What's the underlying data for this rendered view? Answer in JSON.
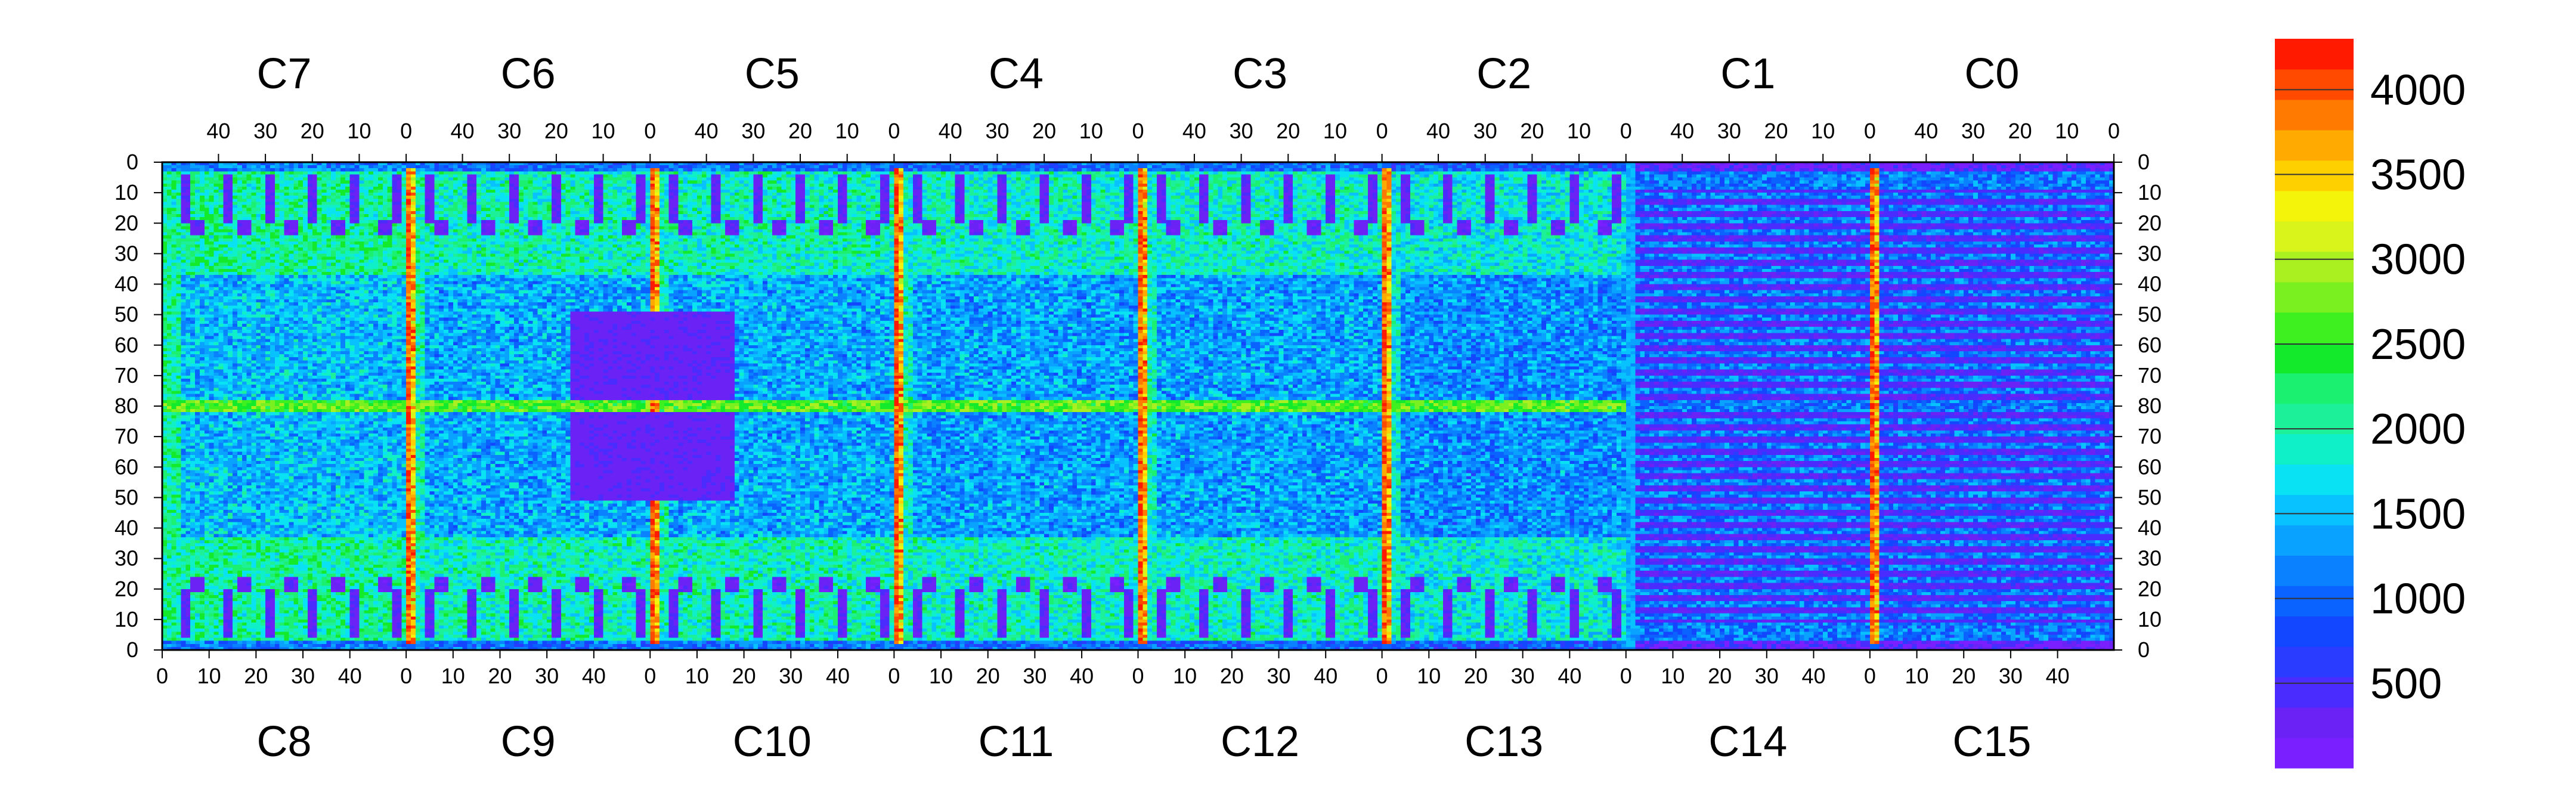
{
  "chart_data": {
    "type": "heatmap",
    "title": "",
    "xlabel": "",
    "ylabel": "",
    "colormap": "rainbow (violet -> blue -> cyan -> green -> yellow -> orange -> red)",
    "grid": false,
    "legend_position": "right",
    "chips_top": [
      "C7",
      "C6",
      "C5",
      "C4",
      "C3",
      "C2",
      "C1",
      "C0"
    ],
    "chips_bottom": [
      "C8",
      "C9",
      "C10",
      "C11",
      "C12",
      "C13",
      "C14",
      "C15"
    ],
    "top_x_ticks": [
      "40",
      "30",
      "20",
      "10",
      "0"
    ],
    "bottom_x_ticks": [
      "0",
      "10",
      "20",
      "30",
      "40"
    ],
    "y_ticks": [
      "0",
      "10",
      "20",
      "30",
      "40",
      "50",
      "60",
      "70",
      "80",
      "70",
      "60",
      "50",
      "40",
      "30",
      "20",
      "10",
      "0"
    ],
    "chip_columns": 52,
    "rows_per_half": 80,
    "colorbar": {
      "min": 0,
      "max": 4300,
      "ticks": [
        500,
        1000,
        1500,
        2000,
        2500,
        3000,
        3500,
        4000
      ],
      "tick_labels": [
        "500",
        "1000",
        "1500",
        "2000",
        "2500",
        "3000",
        "3500",
        "4000"
      ],
      "colors": [
        "#7a1fff",
        "#6a22f5",
        "#4a2cff",
        "#2a3cff",
        "#1246ff",
        "#0a62ff",
        "#0a82ff",
        "#0aa2ff",
        "#08c2ff",
        "#08e2f2",
        "#10f0c8",
        "#1cf098",
        "#1cf070",
        "#14ea2c",
        "#3ef020",
        "#7af020",
        "#aaf020",
        "#d8f41a",
        "#f4f40a",
        "#ffd000",
        "#ffaa00",
        "#ff7a00",
        "#ff4a00",
        "#ff1a00"
      ]
    },
    "chips": {
      "C7": {
        "mean": 2050
      },
      "C6": {
        "mean": 1950
      },
      "C5": {
        "mean": 1950
      },
      "C4": {
        "mean": 1900
      },
      "C3": {
        "mean": 1900
      },
      "C2": {
        "mean": 1800
      },
      "C1": {
        "mean": 1150
      },
      "C0": {
        "mean": 1100
      },
      "C8": {
        "mean": 2050
      },
      "C9": {
        "mean": 1950
      },
      "C10": {
        "mean": 1950
      },
      "C11": {
        "mean": 1900
      },
      "C12": {
        "mean": 1900
      },
      "C13": {
        "mean": 1800
      },
      "C14": {
        "mean": 1150
      },
      "C15": {
        "mean": 1100
      }
    },
    "features": {
      "hot_columns": "chip boundary columns (C7/C6, C6/C5, C5/C4, C4/C3, C3/C2, C1/C0 edges) at ~3500-4300",
      "midline_row": "row 80 elevated (~2000-3000)",
      "low_regions": "rectangular blocks and vertical strips at ~0-500 in most chips; C13/C14 mostly ~300-800"
    }
  }
}
